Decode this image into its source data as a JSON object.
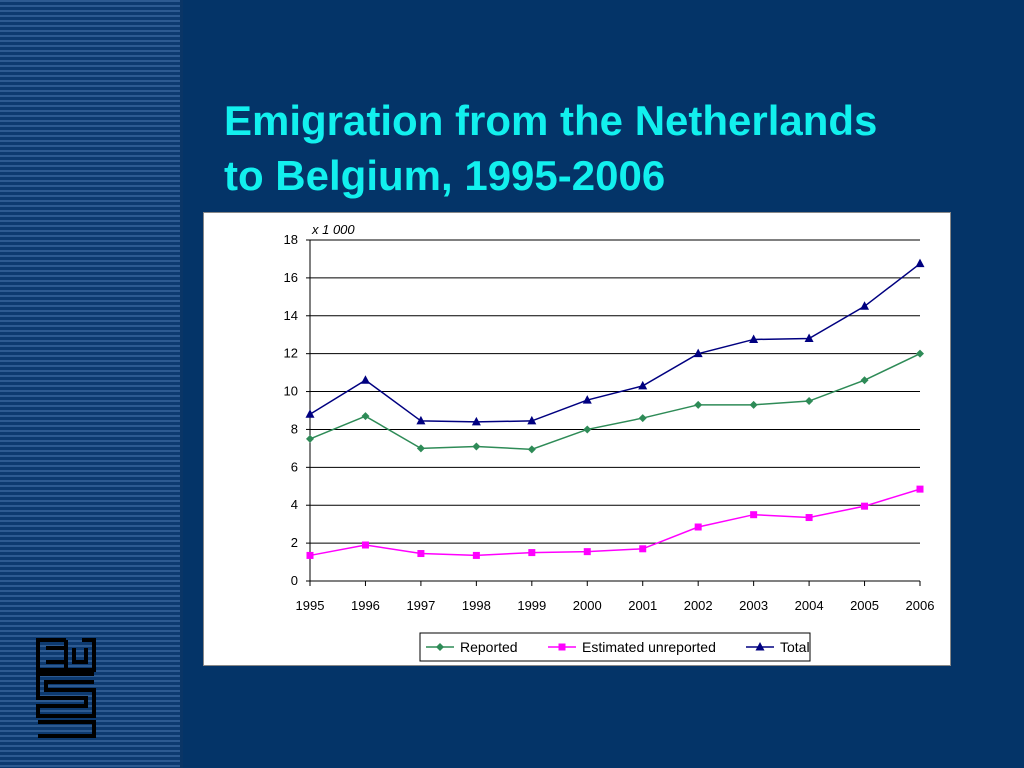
{
  "slide": {
    "title_line1": "Emigration from the Netherlands",
    "title_line2": "to Belgium, 1995-2006"
  },
  "logo": {
    "name": "cbs"
  },
  "colors": {
    "background": "#043468",
    "title": "#12f0ee",
    "reported": "#2e8b57",
    "unreported": "#ff00ff",
    "total": "#000080"
  },
  "chart_data": {
    "type": "line",
    "title": "",
    "unit_label": "x 1 000",
    "xlabel": "",
    "ylabel": "",
    "ylim": [
      0,
      18
    ],
    "yticks": [
      0,
      2,
      4,
      6,
      8,
      10,
      12,
      14,
      16,
      18
    ],
    "grid": true,
    "legend": "bottom",
    "x": [
      "1995",
      "1996",
      "1997",
      "1998",
      "1999",
      "2000",
      "2001",
      "2002",
      "2003",
      "2004",
      "2005",
      "2006"
    ],
    "series": [
      {
        "name": "Reported",
        "color": "#2e8b57",
        "marker": "diamond",
        "values": [
          7.5,
          8.7,
          7.0,
          7.1,
          6.95,
          8.0,
          8.6,
          9.3,
          9.3,
          9.5,
          10.6,
          12.0
        ]
      },
      {
        "name": "Estimated unreported",
        "color": "#ff00ff",
        "marker": "square",
        "values": [
          1.35,
          1.9,
          1.45,
          1.35,
          1.5,
          1.55,
          1.7,
          2.85,
          3.5,
          3.35,
          3.95,
          4.85
        ]
      },
      {
        "name": "Total",
        "color": "#000080",
        "marker": "triangle",
        "values": [
          8.8,
          10.6,
          8.45,
          8.4,
          8.45,
          9.55,
          10.3,
          12.0,
          12.75,
          12.8,
          14.5,
          16.75
        ]
      }
    ]
  }
}
